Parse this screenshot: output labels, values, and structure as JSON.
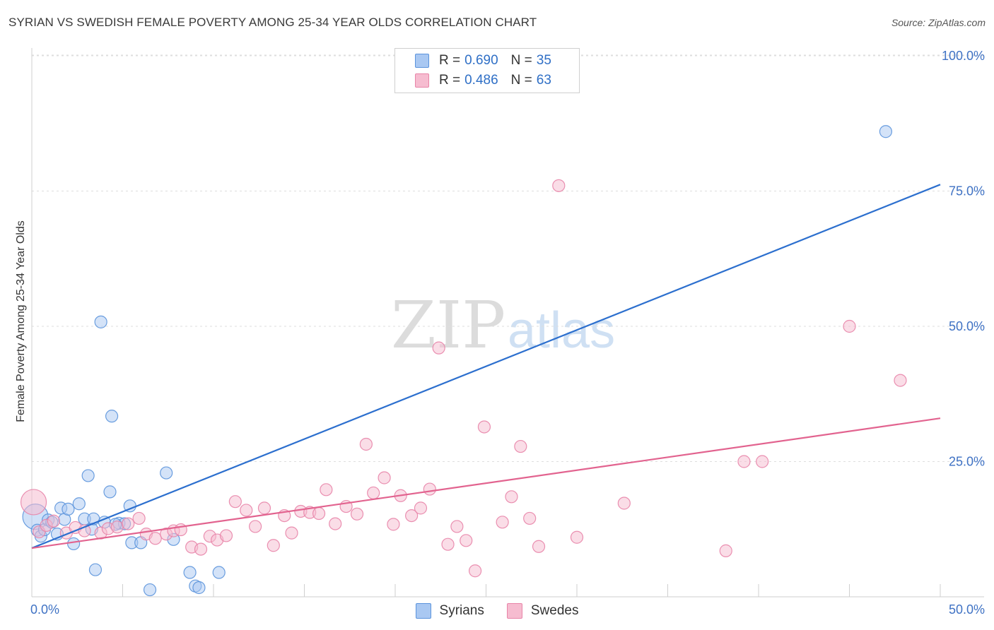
{
  "title": "SYRIAN VS SWEDISH FEMALE POVERTY AMONG 25-34 YEAR OLDS CORRELATION CHART",
  "source": "Source: ZipAtlas.com",
  "watermark": {
    "zip": "ZIP",
    "atlas": "atlas"
  },
  "legend": {
    "syrians": {
      "r_label": "R =",
      "r_value": "0.690",
      "n_label": "N =",
      "n_value": "35"
    },
    "swedes": {
      "r_label": "R =",
      "r_value": "0.486",
      "n_label": "N =",
      "n_value": "63"
    }
  },
  "chart_data": {
    "type": "scatter",
    "title": "SYRIAN VS SWEDISH FEMALE POVERTY AMONG 25-34 YEAR OLDS CORRELATION CHART",
    "xlabel": "",
    "ylabel": "Female Poverty Among 25-34 Year Olds",
    "xlim": [
      0,
      50
    ],
    "ylim": [
      0,
      105
    ],
    "x_tick_labels": [
      "0.0%",
      "50.0%"
    ],
    "y_ticks": [
      25,
      50,
      75,
      100
    ],
    "y_tick_labels": [
      "25.0%",
      "50.0%",
      "75.0%",
      "100.0%"
    ],
    "grid": true,
    "legend_position": "top-center",
    "colors": {
      "syrians_fill": "#a9c8f2",
      "syrians_stroke": "#5b93dc",
      "syrians_line": "#2c6fce",
      "swedes_fill": "#f6bcd0",
      "swedes_stroke": "#e884a8",
      "swedes_line": "#e2638f",
      "axis_label": "#3f72c4"
    },
    "series": [
      {
        "name": "Syrians",
        "r": 0.69,
        "n": 35,
        "trend": {
          "x": [
            0,
            50
          ],
          "y": [
            9.0,
            76.2
          ]
        },
        "points": [
          [
            0.2,
            14.8
          ],
          [
            0.3,
            12.3
          ],
          [
            0.5,
            11.2
          ],
          [
            0.7,
            12.4
          ],
          [
            0.9,
            14.2
          ],
          [
            1.1,
            13.8
          ],
          [
            1.4,
            11.6
          ],
          [
            1.6,
            16.4
          ],
          [
            1.8,
            14.3
          ],
          [
            2.0,
            16.2
          ],
          [
            2.3,
            9.8
          ],
          [
            2.6,
            17.2
          ],
          [
            2.9,
            14.4
          ],
          [
            3.1,
            22.4
          ],
          [
            3.3,
            12.5
          ],
          [
            3.4,
            14.4
          ],
          [
            3.5,
            5.0
          ],
          [
            3.8,
            50.8
          ],
          [
            4.0,
            13.8
          ],
          [
            4.3,
            19.4
          ],
          [
            4.4,
            33.4
          ],
          [
            4.8,
            13.6
          ],
          [
            5.1,
            13.5
          ],
          [
            5.4,
            16.8
          ],
          [
            5.5,
            10.0
          ],
          [
            6.0,
            10.0
          ],
          [
            6.5,
            1.3
          ],
          [
            7.4,
            22.9
          ],
          [
            7.8,
            10.6
          ],
          [
            8.7,
            4.5
          ],
          [
            9.0,
            2.0
          ],
          [
            9.2,
            1.7
          ],
          [
            10.3,
            4.5
          ],
          [
            47.0,
            86.0
          ],
          [
            4.6,
            13.4
          ]
        ]
      },
      {
        "name": "Swedes",
        "r": 0.486,
        "n": 63,
        "trend": {
          "x": [
            0,
            50
          ],
          "y": [
            9.0,
            33.0
          ]
        },
        "points": [
          [
            0.1,
            17.5
          ],
          [
            0.4,
            12.0
          ],
          [
            0.8,
            13.2
          ],
          [
            1.2,
            14.0
          ],
          [
            1.9,
            11.8
          ],
          [
            2.4,
            12.8
          ],
          [
            2.9,
            12.2
          ],
          [
            3.8,
            11.8
          ],
          [
            4.2,
            12.6
          ],
          [
            4.7,
            12.9
          ],
          [
            5.3,
            13.5
          ],
          [
            5.9,
            14.5
          ],
          [
            6.3,
            11.6
          ],
          [
            6.8,
            10.8
          ],
          [
            7.4,
            11.6
          ],
          [
            7.8,
            12.2
          ],
          [
            8.2,
            12.4
          ],
          [
            8.8,
            9.2
          ],
          [
            9.3,
            8.8
          ],
          [
            9.8,
            11.2
          ],
          [
            10.2,
            10.5
          ],
          [
            10.7,
            11.3
          ],
          [
            11.2,
            17.6
          ],
          [
            11.8,
            16.0
          ],
          [
            12.3,
            13.0
          ],
          [
            12.8,
            16.4
          ],
          [
            13.3,
            9.5
          ],
          [
            13.9,
            15.0
          ],
          [
            14.3,
            11.8
          ],
          [
            14.8,
            15.8
          ],
          [
            15.3,
            15.6
          ],
          [
            15.8,
            15.4
          ],
          [
            16.2,
            19.8
          ],
          [
            16.7,
            13.5
          ],
          [
            17.3,
            16.7
          ],
          [
            17.9,
            15.3
          ],
          [
            18.4,
            28.2
          ],
          [
            18.8,
            19.2
          ],
          [
            19.4,
            22.0
          ],
          [
            19.9,
            13.4
          ],
          [
            20.3,
            18.7
          ],
          [
            20.9,
            15.0
          ],
          [
            21.4,
            16.4
          ],
          [
            21.9,
            19.9
          ],
          [
            22.4,
            46.0
          ],
          [
            22.9,
            9.7
          ],
          [
            23.4,
            13.0
          ],
          [
            23.9,
            10.4
          ],
          [
            24.4,
            4.8
          ],
          [
            24.9,
            31.4
          ],
          [
            25.9,
            13.8
          ],
          [
            26.4,
            18.5
          ],
          [
            26.9,
            27.8
          ],
          [
            27.4,
            14.5
          ],
          [
            27.9,
            9.3
          ],
          [
            29.0,
            76.0
          ],
          [
            30.0,
            11.0
          ],
          [
            32.6,
            17.3
          ],
          [
            38.2,
            8.5
          ],
          [
            39.2,
            25.0
          ],
          [
            40.2,
            25.0
          ],
          [
            45.0,
            50.0
          ],
          [
            47.8,
            40.0
          ]
        ]
      }
    ]
  },
  "bottom_legend": [
    "Syrians",
    "Swedes"
  ]
}
